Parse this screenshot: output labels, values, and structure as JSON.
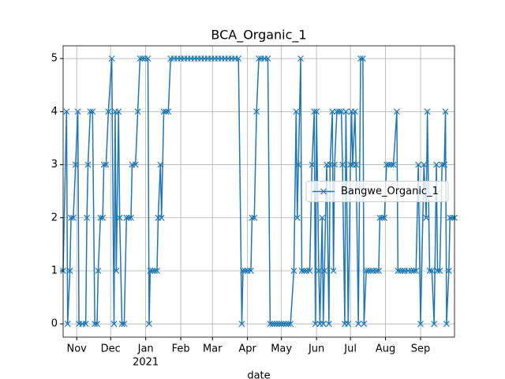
{
  "chart_data": {
    "type": "line",
    "title": "BCA_Organic_1",
    "x_label": "date",
    "xlim": [
      18555,
      18901
    ],
    "xticks": [
      {
        "value": 18567,
        "label": "Nov"
      },
      {
        "value": 18597,
        "label": "Dec"
      },
      {
        "value": 18628,
        "label": "Jan",
        "sublabel": "2021"
      },
      {
        "value": 18659,
        "label": "Feb"
      },
      {
        "value": 18687,
        "label": "Mar"
      },
      {
        "value": 18718,
        "label": "Apr"
      },
      {
        "value": 18748,
        "label": "May"
      },
      {
        "value": 18779,
        "label": "Jun"
      },
      {
        "value": 18809,
        "label": "Jul"
      },
      {
        "value": 18840,
        "label": "Aug"
      },
      {
        "value": 18871,
        "label": "Sep"
      }
    ],
    "ylim": [
      -0.25,
      5.24
    ],
    "yticks": [
      0,
      1,
      2,
      3,
      4,
      5
    ],
    "grid": true,
    "legend": "center right",
    "x": [
      18555,
      18558,
      18559,
      18561,
      18562,
      18564,
      18566,
      18568,
      18569,
      18572,
      18575,
      18576,
      18577,
      18579,
      18581,
      18583,
      18585,
      18586,
      18588,
      18590,
      18591,
      18593,
      18595,
      18598,
      18600,
      18601,
      18602,
      18604,
      18605,
      18607,
      18609,
      18611,
      18613,
      18615,
      18616,
      18619,
      18621,
      18623,
      18625,
      18627,
      18630,
      18631,
      18632,
      18634,
      18636,
      18638,
      18639,
      18641,
      18642,
      18644,
      18646,
      18648,
      18650,
      18653,
      18656,
      18659,
      18662,
      18665,
      18668,
      18671,
      18674,
      18677,
      18680,
      18683,
      18686,
      18689,
      18692,
      18695,
      18698,
      18701,
      18704,
      18707,
      18710,
      18713,
      18714,
      18716,
      18718,
      18721,
      18722,
      18724,
      18726,
      18728,
      18730,
      18733,
      18736,
      18738,
      18740,
      18742,
      18744,
      18746,
      18748,
      18750,
      18752,
      18754,
      18756,
      18759,
      18761,
      18762,
      18763,
      18765,
      18766,
      18768,
      18770,
      18773,
      18775,
      18777,
      18778,
      18779,
      18781,
      18782,
      18784,
      18785,
      18786,
      18788,
      18790,
      18791,
      18793,
      18794,
      18795,
      18797,
      18799,
      18801,
      18802,
      18804,
      18805,
      18807,
      18809,
      18810,
      18811,
      18813,
      18814,
      18816,
      18818,
      18820,
      18821,
      18823,
      18825,
      18827,
      18829,
      18832,
      18834,
      18835,
      18837,
      18839,
      18841,
      18843,
      18845,
      18847,
      18850,
      18851,
      18853,
      18855,
      18857,
      18860,
      18863,
      18865,
      18867,
      18869,
      18871,
      18874,
      18876,
      18877,
      18879,
      18881,
      18883,
      18885,
      18886,
      18888,
      18890,
      18892,
      18893,
      18894,
      18896,
      18897,
      18899,
      18901
    ],
    "series": [
      {
        "name": "Bangwe_Organic_1",
        "color": "#1f77b4",
        "marker": "x",
        "values": [
          1,
          4,
          0,
          1,
          2,
          2,
          3,
          4,
          0,
          0,
          0,
          2,
          3,
          4,
          4,
          0,
          0,
          1,
          2,
          2,
          3,
          3,
          4,
          5,
          0,
          4,
          1,
          4,
          2,
          0,
          0,
          2,
          2,
          2,
          3,
          3,
          4,
          5,
          5,
          5,
          5,
          0,
          1,
          1,
          1,
          1,
          2,
          3,
          2,
          4,
          4,
          4,
          5,
          5,
          5,
          5,
          5,
          5,
          5,
          5,
          5,
          5,
          5,
          5,
          5,
          5,
          5,
          5,
          5,
          5,
          5,
          5,
          5,
          0,
          1,
          1,
          1,
          1,
          2,
          2,
          4,
          5,
          5,
          5,
          5,
          0,
          0,
          0,
          0,
          0,
          0,
          0,
          0,
          0,
          0,
          1,
          4,
          2,
          3,
          5,
          1,
          1,
          1,
          1,
          3,
          4,
          0,
          4,
          1,
          0,
          2,
          0,
          1,
          3,
          0,
          3,
          4,
          1,
          3,
          4,
          4,
          4,
          3,
          0,
          4,
          0,
          3,
          4,
          3,
          4,
          3,
          0,
          5,
          5,
          0,
          1,
          1,
          1,
          1,
          1,
          1,
          2,
          2,
          2,
          3,
          3,
          3,
          3,
          4,
          1,
          1,
          1,
          1,
          1,
          1,
          1,
          1,
          3,
          0,
          3,
          2,
          4,
          1,
          1,
          0,
          3,
          1,
          1,
          3,
          3,
          4,
          0,
          1,
          2,
          2,
          2
        ]
      }
    ]
  }
}
